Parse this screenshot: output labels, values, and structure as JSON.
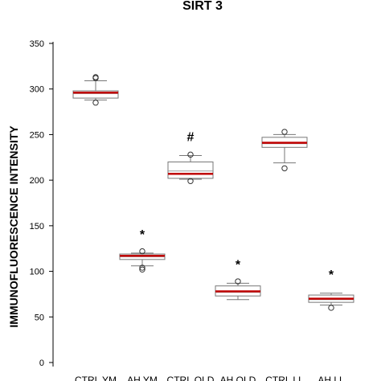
{
  "chart_data": {
    "type": "boxplot",
    "title": "SIRT 3",
    "ylabel": "IMMUNOFLUORESCENCE INTENSITY",
    "xlabel": "",
    "ylim": [
      0,
      350
    ],
    "yticks": [
      0,
      50,
      100,
      150,
      200,
      250,
      300,
      350
    ],
    "categories": [
      "CTRL YM",
      "AH YM",
      "CTRL OLD",
      "AH OLD",
      "CTRL LL",
      "AH LL"
    ],
    "boxes": [
      {
        "category": "CTRL YM",
        "whisker_low": 288,
        "q1": 290,
        "median": 295,
        "mean": 296,
        "q3": 298,
        "whisker_high": 309,
        "outliers": [
          285,
          312,
          313
        ],
        "annotation": ""
      },
      {
        "category": "AH YM",
        "whisker_low": 106,
        "q1": 113,
        "median": 116,
        "mean": 117,
        "q3": 119,
        "whisker_high": 120,
        "outliers": [
          102,
          104,
          122
        ],
        "annotation": "*"
      },
      {
        "category": "CTRL OLD",
        "whisker_low": 201,
        "q1": 202,
        "median": 210,
        "mean": 207,
        "q3": 220,
        "whisker_high": 227,
        "outliers": [
          199,
          228
        ],
        "annotation": "#"
      },
      {
        "category": "AH OLD",
        "whisker_low": 69,
        "q1": 73,
        "median": 77,
        "mean": 78,
        "q3": 84,
        "whisker_high": 87,
        "outliers": [
          89
        ],
        "annotation": "*"
      },
      {
        "category": "CTRL LL",
        "whisker_low": 219,
        "q1": 236,
        "median": 240,
        "mean": 241,
        "q3": 247,
        "whisker_high": 250,
        "outliers": [
          213,
          253
        ],
        "annotation": ""
      },
      {
        "category": "AH LL",
        "whisker_low": 63,
        "q1": 66,
        "median": 69,
        "mean": 70,
        "q3": 74,
        "whisker_high": 76,
        "outliers": [
          60
        ],
        "annotation": "*"
      }
    ],
    "colors": {
      "box": "#777777",
      "median_line": "#999999",
      "mean_line": "#c00000",
      "axis": "#000000"
    }
  }
}
